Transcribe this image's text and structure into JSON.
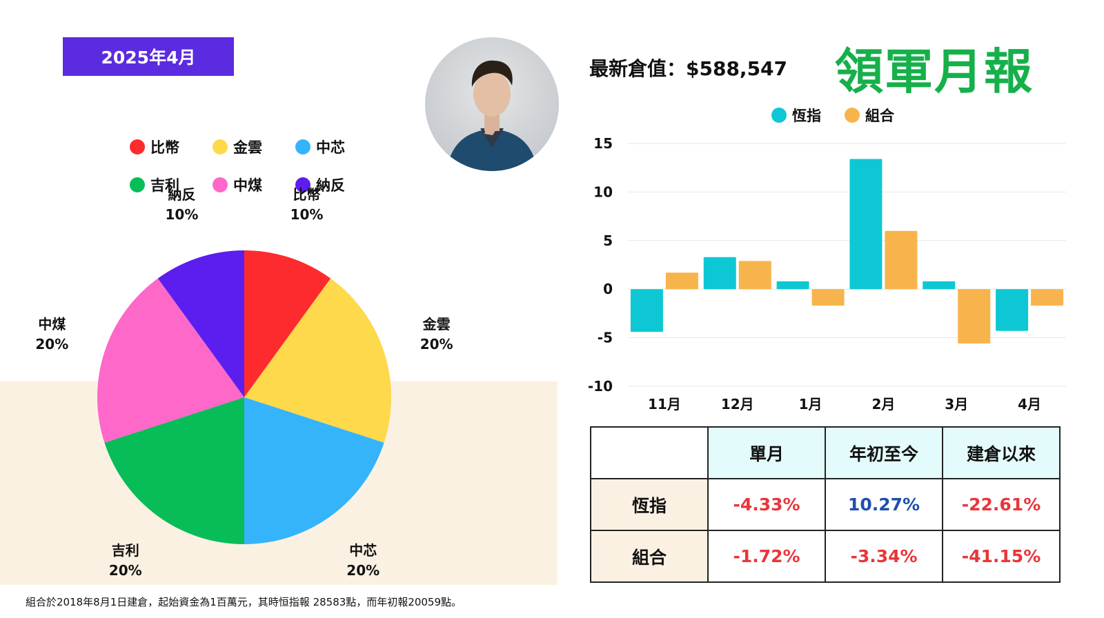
{
  "header": {
    "date_badge": "2025年4月",
    "latest_value": "最新倉值：$588,547",
    "report_title": "領軍月報"
  },
  "chart_data": [
    {
      "type": "pie",
      "title": "",
      "slices": [
        {
          "label": "比幣",
          "value": 10,
          "percent_label": "10%",
          "color": "#fd2b2e"
        },
        {
          "label": "金雲",
          "value": 20,
          "percent_label": "20%",
          "color": "#fdd94b"
        },
        {
          "label": "中芯",
          "value": 20,
          "percent_label": "20%",
          "color": "#35b4fb"
        },
        {
          "label": "吉利",
          "value": 20,
          "percent_label": "20%",
          "color": "#08bd58"
        },
        {
          "label": "中煤",
          "value": 20,
          "percent_label": "20%",
          "color": "#fd68c9"
        },
        {
          "label": "納反",
          "value": 10,
          "percent_label": "10%",
          "color": "#5c1eee"
        }
      ],
      "legend_order": [
        "比幣",
        "金雲",
        "中芯",
        "吉利",
        "中煤",
        "納反"
      ],
      "legend_placement": "top"
    },
    {
      "type": "bar",
      "title": "",
      "categories": [
        "11月",
        "12月",
        "1月",
        "2月",
        "3月",
        "4月"
      ],
      "series": [
        {
          "name": "恆指",
          "color": "#0dc8d4",
          "values": [
            -4.4,
            3.3,
            0.8,
            13.4,
            0.8,
            -4.3
          ]
        },
        {
          "name": "組合",
          "color": "#f8b44c",
          "values": [
            1.7,
            2.9,
            -1.7,
            6.0,
            -5.6,
            -1.7
          ]
        }
      ],
      "ylim": [
        -10,
        15
      ],
      "yticks": [
        "15",
        "10",
        "5",
        "0",
        "-5",
        "-10"
      ],
      "grid": true,
      "legend_placement": "top"
    }
  ],
  "table": {
    "headers": [
      "",
      "單月",
      "年初至今",
      "建倉以來"
    ],
    "rows": [
      {
        "label": "恆指",
        "cells": [
          {
            "text": "-4.33%",
            "tone": "neg"
          },
          {
            "text": "10.27%",
            "tone": "pos"
          },
          {
            "text": "-22.61%",
            "tone": "neg"
          }
        ]
      },
      {
        "label": "組合",
        "cells": [
          {
            "text": "-1.72%",
            "tone": "neg"
          },
          {
            "text": "-3.34%",
            "tone": "neg"
          },
          {
            "text": "-41.15%",
            "tone": "neg"
          }
        ]
      }
    ]
  },
  "footnote": "組合於2018年8月1日建倉，起始資金為1百萬元，其時恒指報 28583點，而年初報20059點。"
}
